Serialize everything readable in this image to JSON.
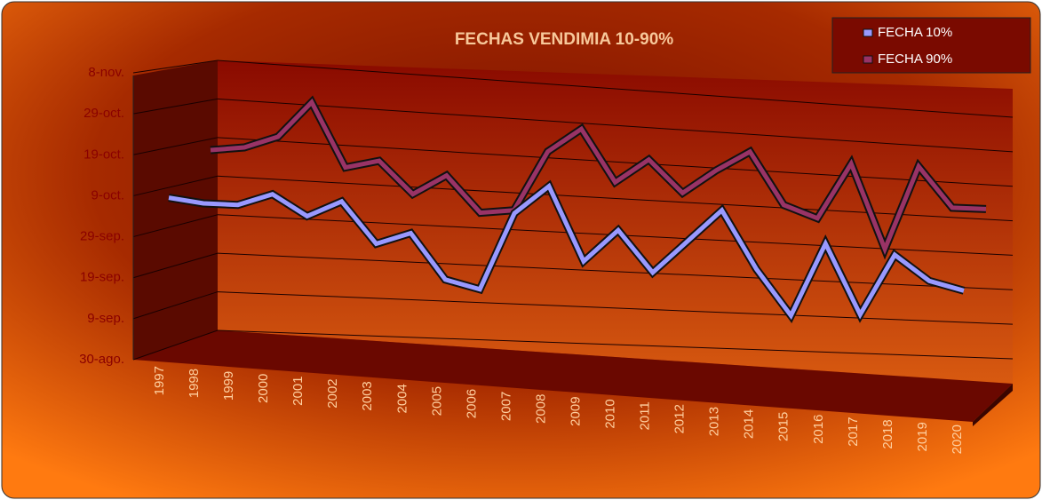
{
  "chart_data": {
    "type": "line",
    "title": "FECHAS VENDIMIA 10-90%",
    "categories": [
      "1997",
      "1998",
      "1999",
      "2000",
      "2001",
      "2002",
      "2003",
      "2004",
      "2005",
      "2006",
      "2007",
      "2008",
      "2009",
      "2010",
      "2011",
      "2012",
      "2013",
      "2014",
      "2015",
      "2016",
      "2017",
      "2018",
      "2019",
      "2020"
    ],
    "series": [
      {
        "name": "FECHA 10%",
        "color": "#9999ff",
        "values": [
          281,
          280,
          280,
          283,
          278,
          282,
          272,
          275,
          264,
          262,
          281,
          288,
          270,
          278,
          268,
          276,
          284,
          270,
          259,
          277,
          260,
          275,
          269,
          267
        ]
      },
      {
        "name": "FECHA 90%",
        "color": "#993366",
        "values": [
          290,
          291,
          294,
          303,
          287,
          289,
          281,
          286,
          277,
          278,
          293,
          299,
          286,
          292,
          284,
          290,
          295,
          282,
          279,
          293,
          272,
          293,
          283,
          283
        ]
      }
    ],
    "ylim": [
      242,
      312
    ],
    "yticks": [
      {
        "value": 242,
        "label": "30-ago."
      },
      {
        "value": 252,
        "label": "9-sep."
      },
      {
        "value": 262,
        "label": "19-sep."
      },
      {
        "value": 272,
        "label": "29-sep."
      },
      {
        "value": 282,
        "label": "9-oct."
      },
      {
        "value": 292,
        "label": "19-oct."
      },
      {
        "value": 302,
        "label": "29-oct."
      },
      {
        "value": 312,
        "label": "8-nov."
      }
    ],
    "grid": true,
    "legend": "top-right"
  }
}
